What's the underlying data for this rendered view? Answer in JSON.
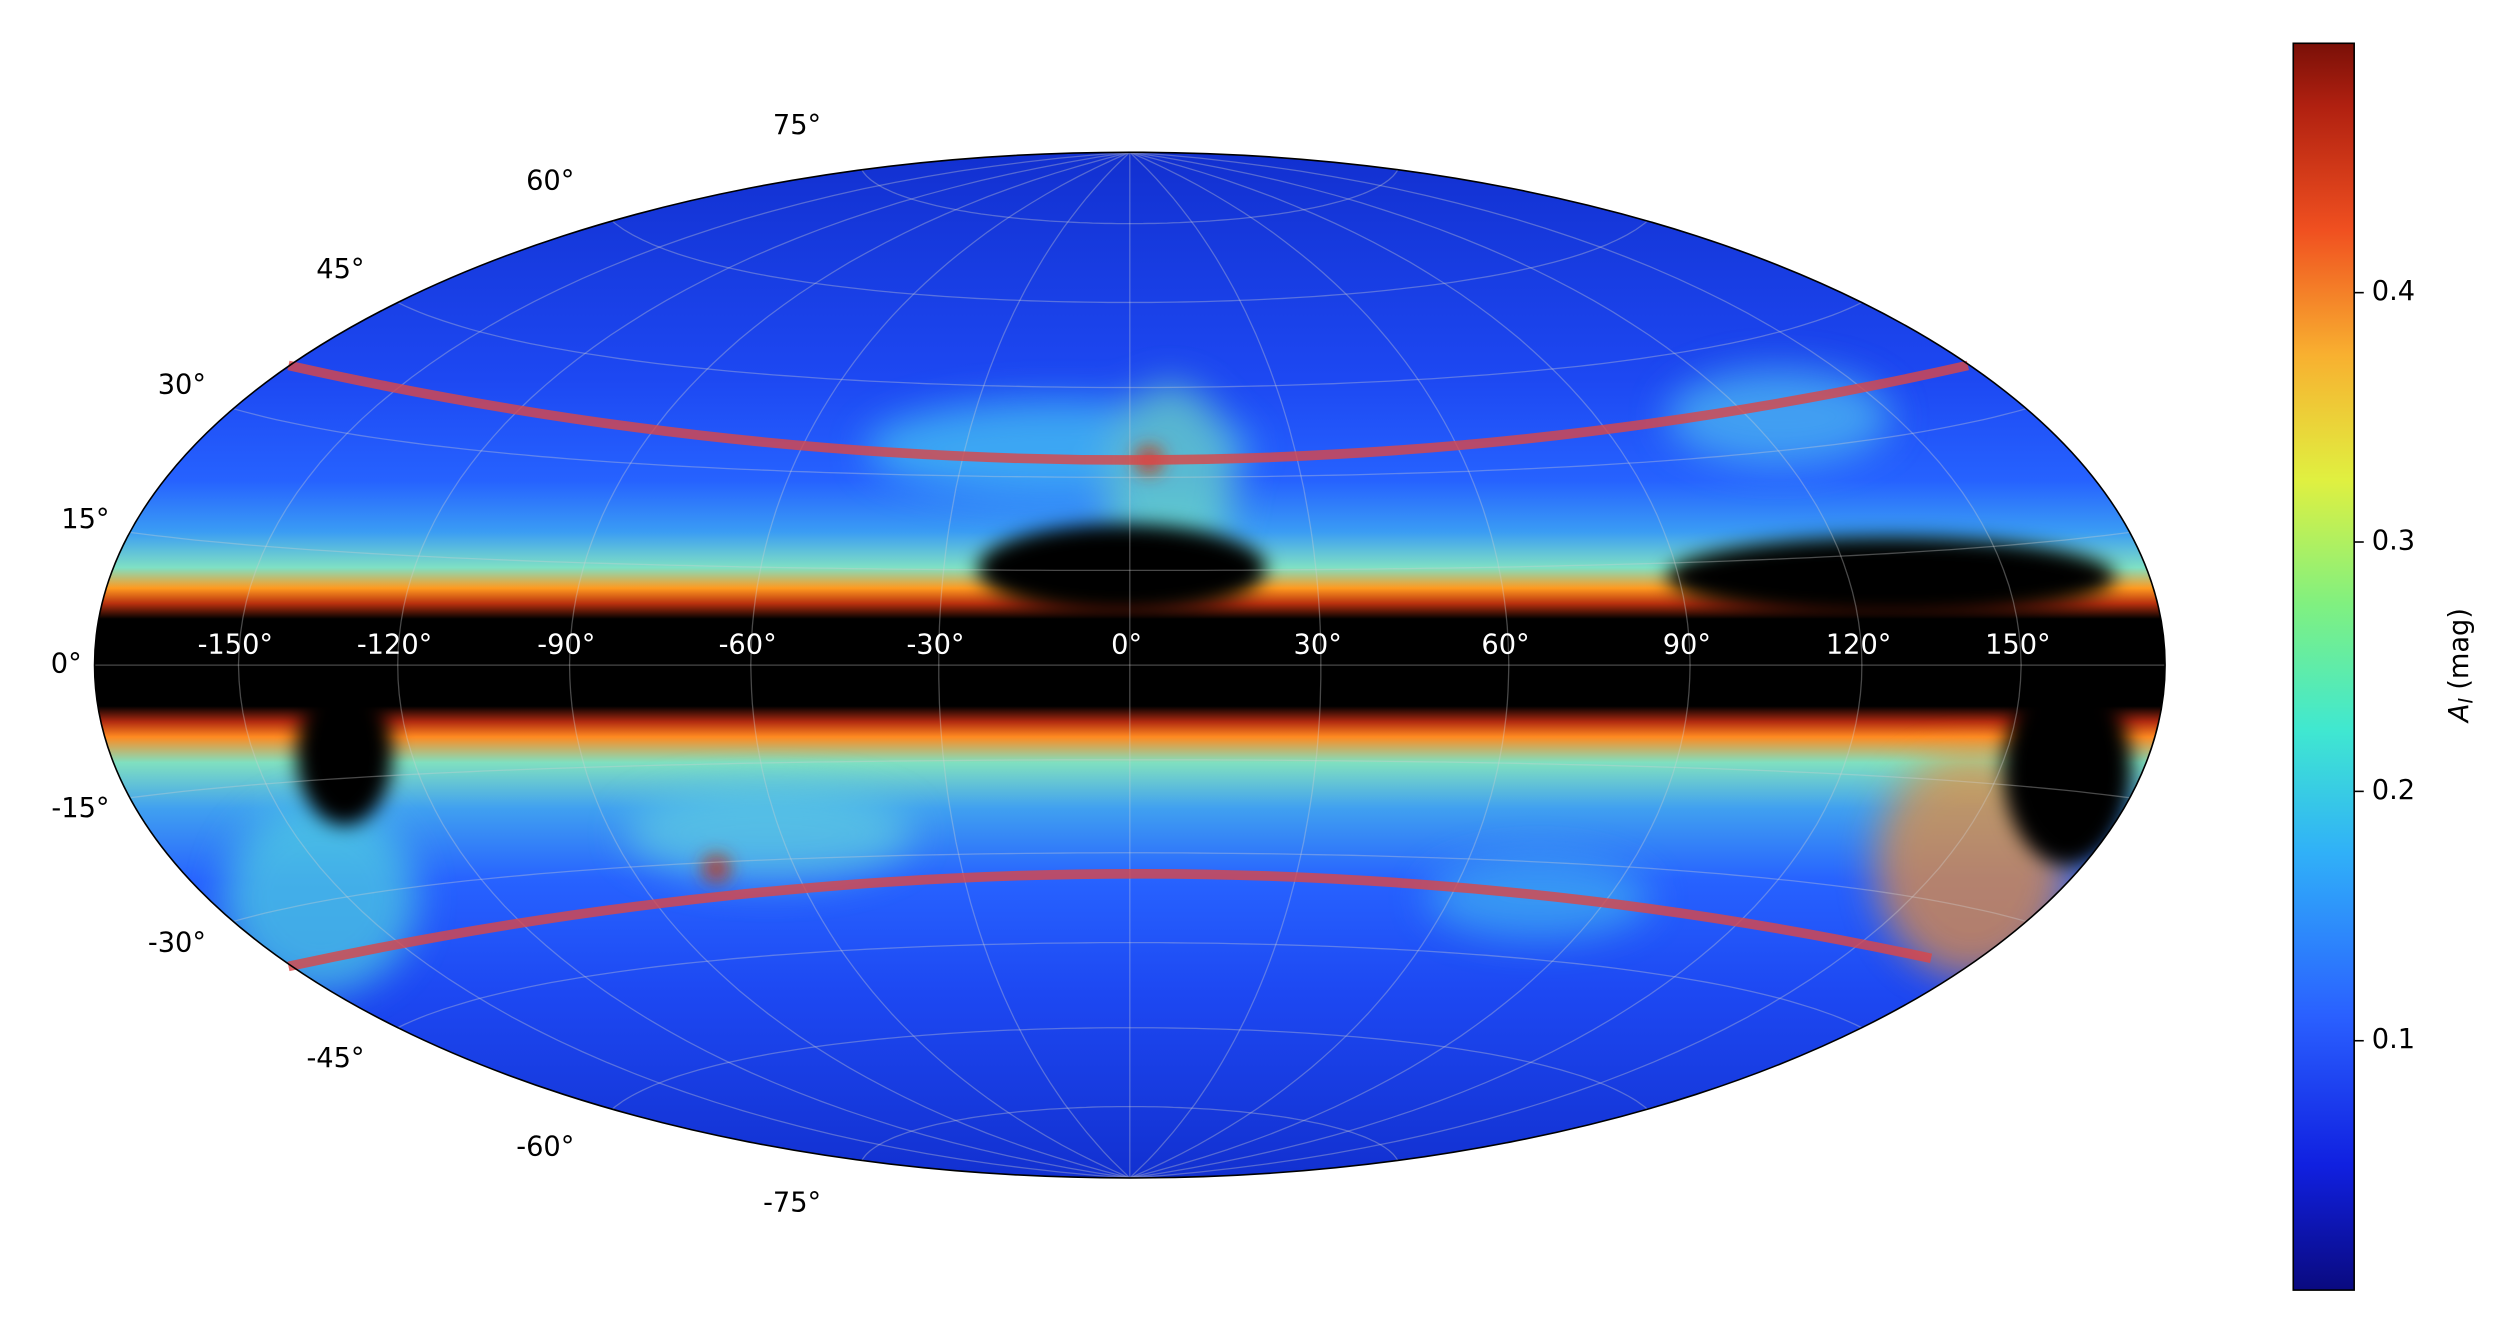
{
  "chart_data": {
    "type": "map",
    "projection": "hammer",
    "xticks": [
      {
        "value": -150,
        "label": "-150°"
      },
      {
        "value": -120,
        "label": "-120°"
      },
      {
        "value": -90,
        "label": "-90°"
      },
      {
        "value": -60,
        "label": "-60°"
      },
      {
        "value": -30,
        "label": "-30°"
      },
      {
        "value": 0,
        "label": "0°"
      },
      {
        "value": 30,
        "label": "30°"
      },
      {
        "value": 60,
        "label": "60°"
      },
      {
        "value": 90,
        "label": "90°"
      },
      {
        "value": 120,
        "label": "120°"
      },
      {
        "value": 150,
        "label": "150°"
      }
    ],
    "yticks": [
      {
        "value": -75,
        "label": "-75°"
      },
      {
        "value": -60,
        "label": "-60°"
      },
      {
        "value": -45,
        "label": "-45°"
      },
      {
        "value": -30,
        "label": "-30°"
      },
      {
        "value": -15,
        "label": "-15°"
      },
      {
        "value": 0,
        "label": "0°"
      },
      {
        "value": 15,
        "label": "15°"
      },
      {
        "value": 30,
        "label": "30°"
      },
      {
        "value": 45,
        "label": "45°"
      },
      {
        "value": 60,
        "label": "60°"
      },
      {
        "value": 75,
        "label": "75°"
      }
    ],
    "grid": true,
    "colorbar": {
      "label_symbol": "A",
      "label_subscript": "I",
      "label_unit": "(mag)",
      "lim": [
        0,
        0.5
      ],
      "ticks": [
        0.1,
        0.2,
        0.3,
        0.4
      ]
    }
  }
}
